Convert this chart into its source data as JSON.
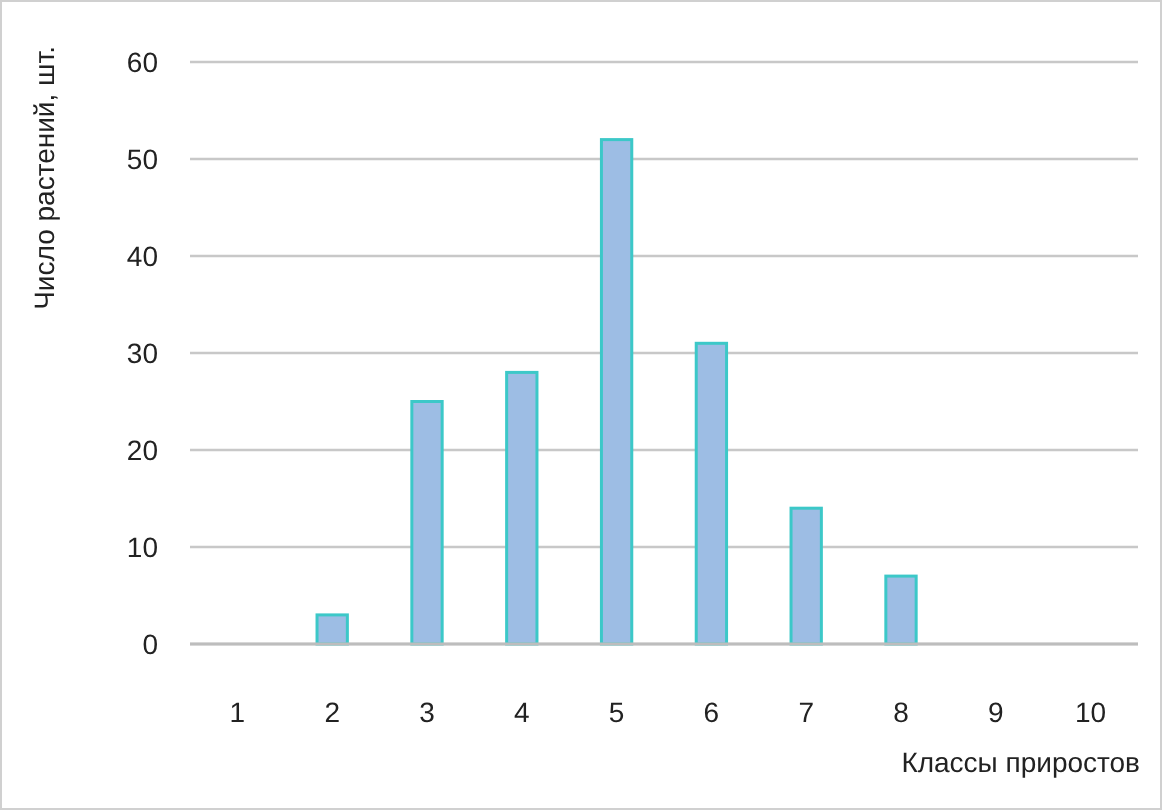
{
  "chart_data": {
    "type": "bar",
    "xlabel": "Классы приростов",
    "ylabel": "Число растений, шт.",
    "categories": [
      "1",
      "2",
      "3",
      "4",
      "5",
      "6",
      "7",
      "8",
      "9",
      "10"
    ],
    "values": [
      0,
      3,
      25,
      28,
      52,
      31,
      14,
      7,
      0,
      0
    ],
    "color": "#9dbde4",
    "ylim": [
      0,
      60
    ],
    "yticks": [
      0,
      10,
      20,
      30,
      40,
      50,
      60
    ],
    "grid": "y"
  }
}
